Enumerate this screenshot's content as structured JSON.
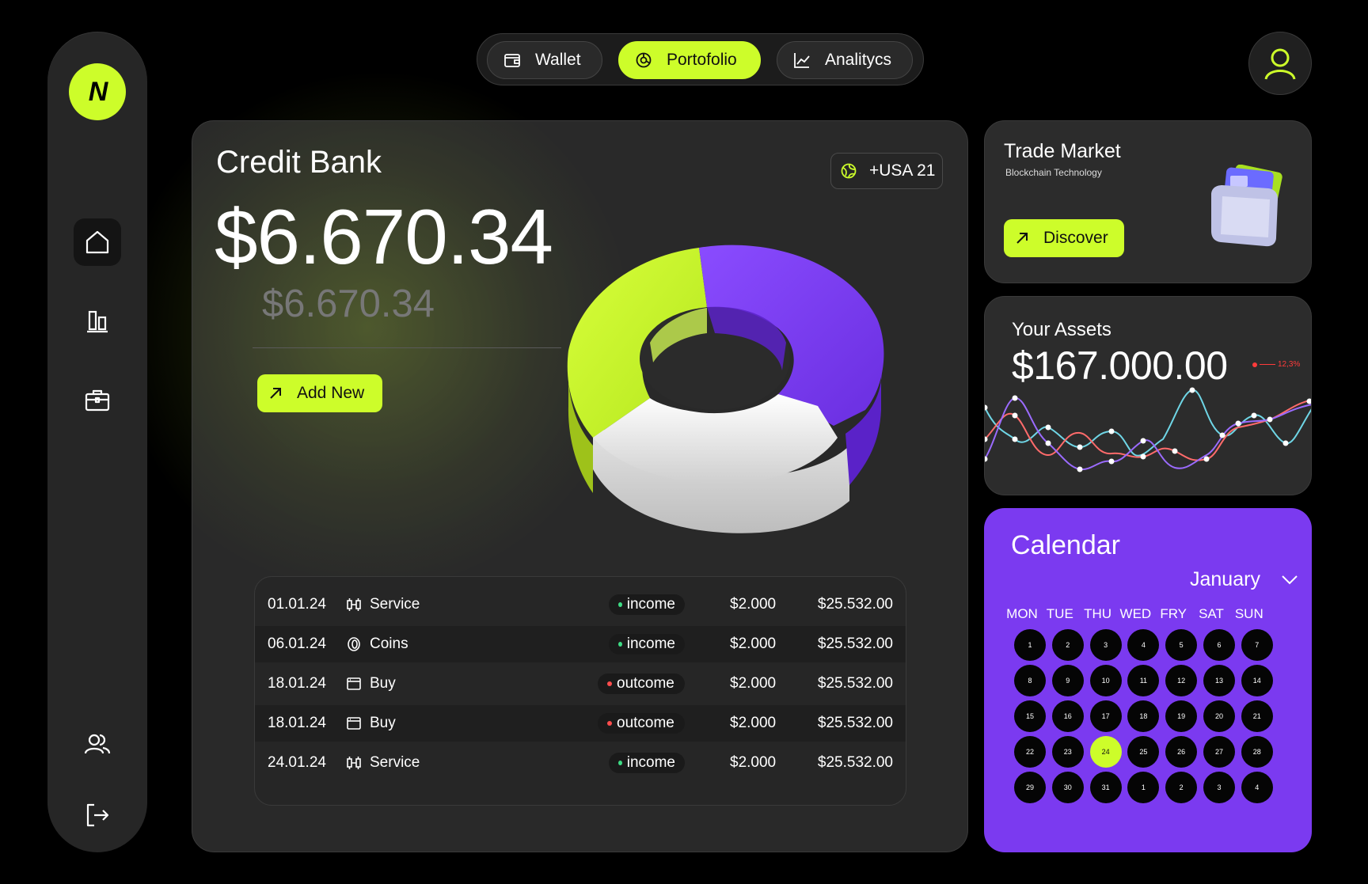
{
  "nav": {
    "logo": "N",
    "tabs": [
      {
        "label": "Wallet",
        "icon": "wallet-icon"
      },
      {
        "label": "Portofolio",
        "icon": "pie-icon"
      },
      {
        "label": "Analitycs",
        "icon": "trend-icon"
      }
    ]
  },
  "sidebar": {
    "items": [
      {
        "name": "home",
        "icon": "home-icon",
        "active": true
      },
      {
        "name": "stats",
        "icon": "bar-chart-icon"
      },
      {
        "name": "portfolio",
        "icon": "briefcase-icon"
      },
      {
        "name": "users",
        "icon": "users-icon"
      },
      {
        "name": "logout",
        "icon": "logout-icon"
      }
    ]
  },
  "main": {
    "title": "Credit Bank",
    "balance": "$6.670.34",
    "balance_secondary": "$6.670.34",
    "add_label": "Add New",
    "region": "+USA 21",
    "donut": {
      "segments": [
        {
          "color": "#7b3af0",
          "share": 0.38
        },
        {
          "color": "#ffffff",
          "share": 0.3
        },
        {
          "color": "#cdfd2a",
          "share": 0.32
        }
      ]
    },
    "transactions": [
      {
        "date": "01.01.24",
        "type": "Service",
        "icon": "service-icon",
        "status": "income",
        "amount": "$2.000",
        "balance": "$25.532.00"
      },
      {
        "date": "06.01.24",
        "type": "Coins",
        "icon": "coin-icon",
        "status": "income",
        "amount": "$2.000",
        "balance": "$25.532.00"
      },
      {
        "date": "18.01.24",
        "type": "Buy",
        "icon": "window-icon",
        "status": "outcome",
        "amount": "$2.000",
        "balance": "$25.532.00"
      },
      {
        "date": "18.01.24",
        "type": "Buy",
        "icon": "window-icon",
        "status": "outcome",
        "amount": "$2.000",
        "balance": "$25.532.00"
      },
      {
        "date": "24.01.24",
        "type": "Service",
        "icon": "service-icon",
        "status": "income",
        "amount": "$2.000",
        "balance": "$25.532.00"
      }
    ],
    "status_colors": {
      "income": "#3ddc84",
      "outcome": "#ff4d4d"
    }
  },
  "trade": {
    "title": "Trade Market",
    "subtitle": "Blockchain Technology",
    "button": "Discover"
  },
  "assets": {
    "title": "Your Assets",
    "value": "$167.000.00",
    "delta": "12,3%"
  },
  "calendar": {
    "title": "Calendar",
    "month": "January",
    "weekdays": [
      "MON",
      "TUE",
      "THU",
      "WED",
      "FRY",
      "SAT",
      "SUN"
    ],
    "days": [
      "1",
      "2",
      "3",
      "4",
      "5",
      "6",
      "7",
      "8",
      "9",
      "10",
      "11",
      "12",
      "13",
      "14",
      "15",
      "16",
      "17",
      "18",
      "19",
      "20",
      "21",
      "22",
      "23",
      "24",
      "25",
      "26",
      "27",
      "28",
      "29",
      "30",
      "31",
      "1",
      "2",
      "3",
      "4"
    ],
    "selected": "24"
  },
  "colors": {
    "accent": "#cdfd2a",
    "purple": "#7b3af0",
    "card": "#2c2c2c"
  }
}
